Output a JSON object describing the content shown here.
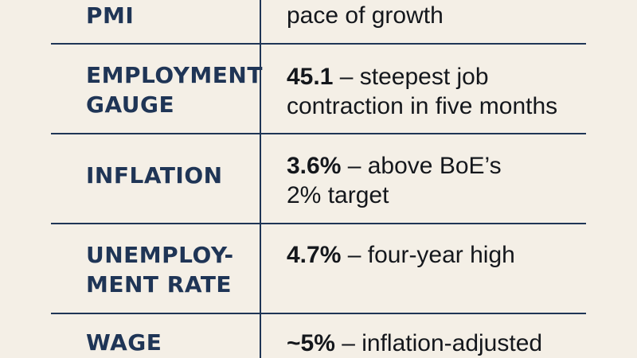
{
  "rows": [
    {
      "label_lines": [
        "PMI"
      ],
      "value_number": "",
      "value_rest": [
        "pace of growth"
      ]
    },
    {
      "label_lines": [
        "EMPLOYMENT",
        "GAUGE"
      ],
      "value_number": "45.1",
      "value_rest": [
        " – steepest job",
        "contraction in five months"
      ]
    },
    {
      "label_lines": [
        "INFLATION"
      ],
      "value_number": "3.6%",
      "value_rest": [
        " – above BoE’s",
        "2% target"
      ]
    },
    {
      "label_lines": [
        "UNEMPLOY-",
        "MENT RATE"
      ],
      "value_number": "4.7%",
      "value_rest": [
        " – four-year high"
      ]
    },
    {
      "label_lines": [
        "WAGE"
      ],
      "value_number": "~5%",
      "value_rest": [
        " – inflation-adjusted"
      ]
    }
  ],
  "colors": {
    "background": "#f4efe6",
    "rule": "#1f3556",
    "label": "#1f3556",
    "value": "#14171c"
  }
}
